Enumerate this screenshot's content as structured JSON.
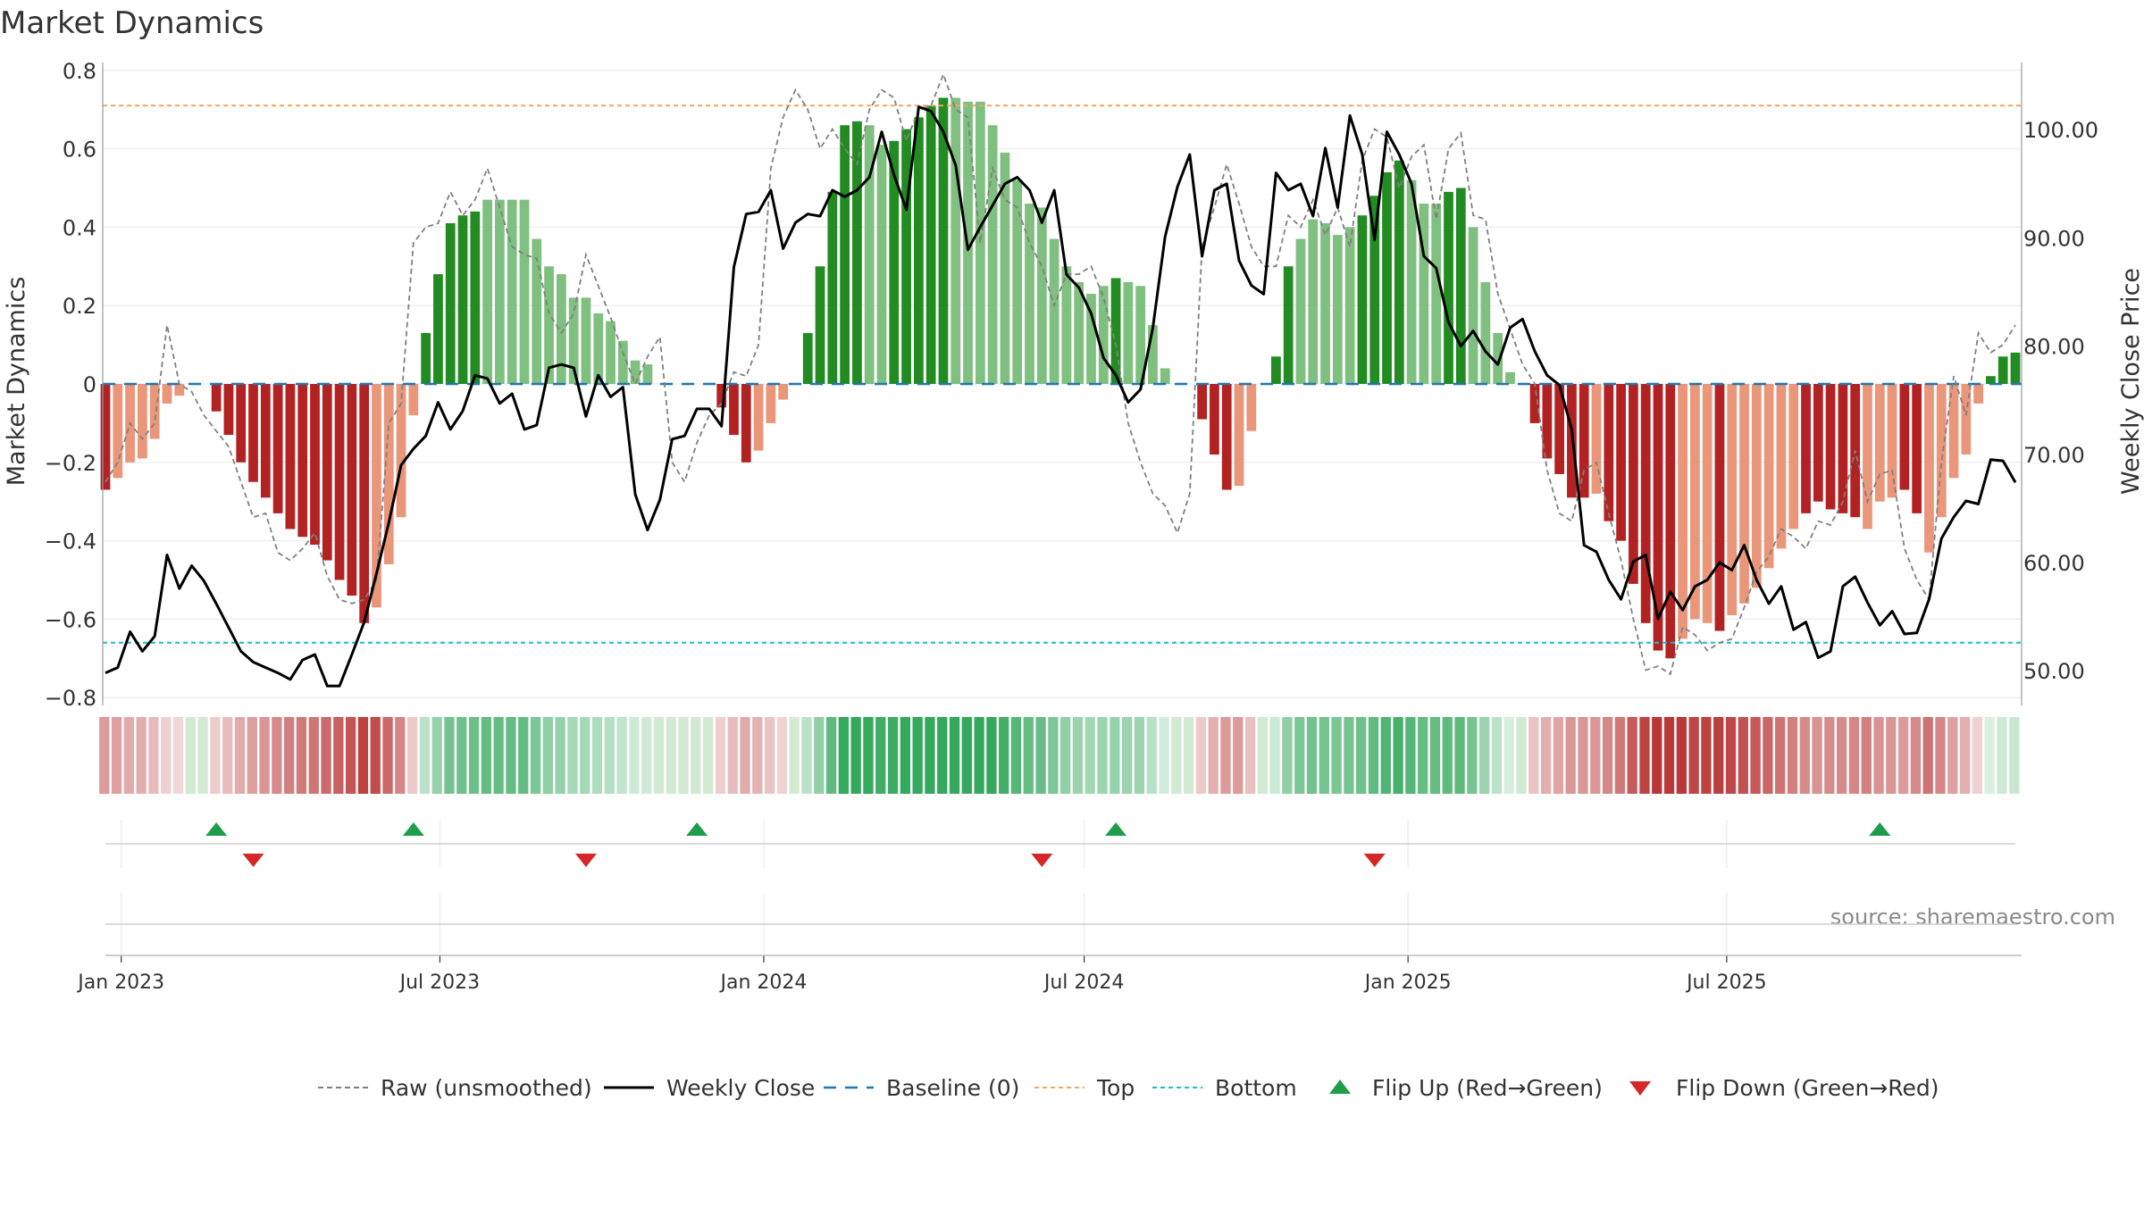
{
  "chart_data": {
    "type": "bar",
    "title": "Market Dynamics",
    "ylabel_left": "Market Dynamics",
    "ylabel_right": "Weekly Close Price",
    "source": "source: sharemaestro.com",
    "y_left_ticks": [
      "0.8",
      "0.6",
      "0.4",
      "0.2",
      "0",
      "−0.2",
      "−0.4",
      "−0.6",
      "−0.8"
    ],
    "y_left_tick_values": [
      0.8,
      0.6,
      0.4,
      0.2,
      0,
      -0.2,
      -0.4,
      -0.6,
      -0.8
    ],
    "y_right_ticks": [
      "100.00",
      "90.00",
      "80.00",
      "70.00",
      "60.00",
      "50.00"
    ],
    "y_right_tick_values": [
      100,
      90,
      80,
      70,
      60,
      50
    ],
    "ylim_left": [
      -0.82,
      0.82
    ],
    "ylim_right": [
      46.8,
      106.2
    ],
    "x_ticks": [
      "Jan 2023",
      "Jul 2023",
      "Jan 2024",
      "Jul 2024",
      "Jan 2025",
      "Jul 2025"
    ],
    "x_tick_dates": [
      "2023-01-01",
      "2023-07-01",
      "2024-01-01",
      "2024-07-01",
      "2025-01-01",
      "2025-07-01"
    ],
    "x_start": "2022-12-23",
    "week_step_days": 7,
    "top_level": 0.71,
    "bottom_level": -0.66,
    "grid": true,
    "legend_position": "bottom",
    "colors": {
      "strong_green": "#228b22",
      "weak_green": "#7fbf7f",
      "strong_red": "#b22222",
      "weak_red": "#e9967a",
      "top_line": "#f4a460",
      "bottom_line": "#17becf",
      "baseline": "#1f77b4",
      "flip_up": "#1e9e4a",
      "flip_down": "#d62728",
      "close_line": "#000000",
      "raw_line": "#808080"
    },
    "momentum": [
      -0.27,
      -0.24,
      -0.2,
      -0.19,
      -0.14,
      -0.05,
      -0.03,
      0.0,
      0.0,
      -0.07,
      -0.13,
      -0.2,
      -0.25,
      -0.29,
      -0.33,
      -0.37,
      -0.39,
      -0.41,
      -0.45,
      -0.5,
      -0.54,
      -0.61,
      -0.57,
      -0.46,
      -0.34,
      -0.08,
      0.13,
      0.28,
      0.41,
      0.43,
      0.44,
      0.47,
      0.47,
      0.47,
      0.47,
      0.37,
      0.3,
      0.28,
      0.22,
      0.22,
      0.18,
      0.16,
      0.11,
      0.06,
      0.05,
      0.0,
      0.0,
      0.0,
      0.0,
      0.0,
      -0.06,
      -0.13,
      -0.2,
      -0.17,
      -0.1,
      -0.04,
      0.0,
      0.13,
      0.3,
      0.49,
      0.66,
      0.67,
      0.66,
      0.61,
      0.62,
      0.65,
      0.68,
      0.71,
      0.73,
      0.73,
      0.72,
      0.72,
      0.66,
      0.59,
      0.52,
      0.46,
      0.45,
      0.37,
      0.3,
      0.26,
      0.23,
      0.25,
      0.27,
      0.26,
      0.25,
      0.15,
      0.04,
      0.0,
      0.0,
      -0.09,
      -0.18,
      -0.27,
      -0.26,
      -0.12,
      0.0,
      0.07,
      0.3,
      0.37,
      0.42,
      0.41,
      0.38,
      0.4,
      0.43,
      0.48,
      0.54,
      0.57,
      0.52,
      0.46,
      0.46,
      0.49,
      0.5,
      0.4,
      0.26,
      0.13,
      0.03,
      0.0,
      -0.1,
      -0.19,
      -0.23,
      -0.29,
      -0.29,
      -0.28,
      -0.35,
      -0.4,
      -0.51,
      -0.61,
      -0.68,
      -0.7,
      -0.65,
      -0.6,
      -0.61,
      -0.63,
      -0.59,
      -0.56,
      -0.52,
      -0.47,
      -0.42,
      -0.37,
      -0.33,
      -0.3,
      -0.32,
      -0.33,
      -0.34,
      -0.37,
      -0.3,
      -0.29,
      -0.27,
      -0.33,
      -0.43,
      -0.34,
      -0.24,
      -0.18,
      -0.05,
      0.02,
      0.07,
      0.08
    ],
    "momentum_strength": [
      "s",
      "w",
      "w",
      "w",
      "w",
      "w",
      "w",
      "w",
      "w",
      "s",
      "s",
      "s",
      "s",
      "s",
      "s",
      "s",
      "s",
      "s",
      "s",
      "s",
      "s",
      "s",
      "w",
      "w",
      "w",
      "w",
      "s",
      "s",
      "s",
      "s",
      "s",
      "w",
      "w",
      "w",
      "w",
      "w",
      "w",
      "w",
      "w",
      "w",
      "w",
      "w",
      "w",
      "w",
      "w",
      "w",
      "w",
      "w",
      "w",
      "w",
      "s",
      "s",
      "s",
      "w",
      "w",
      "w",
      "w",
      "s",
      "s",
      "s",
      "s",
      "s",
      "w",
      "w",
      "s",
      "s",
      "s",
      "s",
      "s",
      "w",
      "w",
      "w",
      "w",
      "w",
      "w",
      "w",
      "w",
      "w",
      "w",
      "w",
      "w",
      "w",
      "s",
      "w",
      "w",
      "w",
      "w",
      "w",
      "w",
      "s",
      "s",
      "s",
      "w",
      "w",
      "w",
      "s",
      "s",
      "w",
      "w",
      "w",
      "w",
      "w",
      "s",
      "s",
      "s",
      "s",
      "w",
      "w",
      "w",
      "s",
      "s",
      "w",
      "w",
      "w",
      "w",
      "w",
      "s",
      "s",
      "s",
      "s",
      "s",
      "w",
      "s",
      "s",
      "s",
      "s",
      "s",
      "s",
      "w",
      "w",
      "w",
      "s",
      "w",
      "w",
      "w",
      "w",
      "w",
      "w",
      "s",
      "s",
      "s",
      "s",
      "s",
      "w",
      "w",
      "w",
      "s",
      "s",
      "w",
      "w",
      "w",
      "w",
      "w",
      "s",
      "s",
      "s"
    ],
    "close": [
      49.8,
      50.3,
      53.6,
      51.8,
      53.2,
      60.7,
      57.6,
      59.7,
      58.3,
      56.2,
      54.0,
      51.8,
      50.8,
      50.3,
      49.8,
      49.2,
      51.0,
      51.5,
      48.6,
      48.6,
      51.5,
      54.5,
      59.0,
      63.7,
      69.0,
      70.5,
      71.7,
      74.8,
      72.3,
      74.0,
      77.3,
      77.0,
      74.7,
      75.6,
      72.3,
      72.7,
      78.0,
      78.3,
      78.0,
      73.5,
      77.3,
      75.3,
      76.2,
      66.3,
      63.0,
      65.8,
      71.4,
      71.7,
      74.2,
      74.2,
      72.6,
      87.3,
      92.2,
      92.4,
      94.4,
      89.0,
      91.4,
      92.2,
      92.0,
      94.4,
      93.8,
      94.4,
      95.6,
      99.8,
      95.8,
      92.6,
      102.1,
      101.7,
      99.8,
      96.7,
      88.9,
      91.0,
      93.0,
      95.0,
      95.6,
      94.4,
      91.4,
      94.4,
      86.6,
      85.4,
      83.0,
      78.9,
      77.3,
      74.8,
      76.0,
      81.7,
      90.1,
      94.7,
      97.7,
      88.3,
      94.4,
      95.0,
      87.9,
      85.6,
      84.8,
      96.0,
      94.4,
      95.0,
      92.0,
      98.3,
      92.8,
      101.3,
      97.7,
      89.8,
      99.8,
      97.7,
      95.0,
      88.3,
      87.2,
      82.2,
      80.0,
      81.4,
      79.5,
      78.3,
      81.7,
      82.5,
      79.5,
      77.3,
      76.4,
      72.3,
      61.6,
      61.0,
      58.4,
      56.6,
      60.1,
      60.7,
      54.8,
      57.3,
      55.6,
      57.8,
      58.4,
      60.0,
      59.3,
      61.6,
      58.4,
      56.2,
      57.8,
      53.8,
      54.5,
      51.2,
      51.8,
      57.8,
      58.7,
      56.3,
      54.2,
      55.5,
      53.4,
      53.5,
      56.6,
      62.2,
      64.2,
      65.7,
      65.4,
      69.5,
      69.4,
      67.4
    ],
    "raw": [
      -0.25,
      -0.2,
      -0.1,
      -0.14,
      -0.1,
      0.15,
      0.0,
      -0.02,
      -0.08,
      -0.12,
      -0.16,
      -0.25,
      -0.34,
      -0.33,
      -0.43,
      -0.45,
      -0.42,
      -0.38,
      -0.49,
      -0.55,
      -0.56,
      -0.55,
      -0.5,
      -0.1,
      -0.05,
      0.36,
      0.4,
      0.41,
      0.49,
      0.43,
      0.47,
      0.55,
      0.45,
      0.35,
      0.33,
      0.32,
      0.18,
      0.13,
      0.18,
      0.33,
      0.25,
      0.17,
      0.08,
      0.0,
      0.07,
      0.12,
      -0.2,
      -0.25,
      -0.15,
      -0.08,
      -0.05,
      0.03,
      0.02,
      0.1,
      0.55,
      0.68,
      0.75,
      0.7,
      0.6,
      0.65,
      0.6,
      0.56,
      0.7,
      0.75,
      0.73,
      0.62,
      0.7,
      0.71,
      0.79,
      0.7,
      0.68,
      0.36,
      0.55,
      0.47,
      0.45,
      0.36,
      0.3,
      0.2,
      0.28,
      0.28,
      0.3,
      0.22,
      0.1,
      -0.1,
      -0.2,
      -0.28,
      -0.31,
      -0.38,
      -0.28,
      0.35,
      0.45,
      0.56,
      0.46,
      0.35,
      0.3,
      0.3,
      0.43,
      0.4,
      0.47,
      0.38,
      0.45,
      0.35,
      0.57,
      0.65,
      0.63,
      0.5,
      0.58,
      0.61,
      0.42,
      0.6,
      0.64,
      0.43,
      0.42,
      0.23,
      0.14,
      0.05,
      0.0,
      -0.22,
      -0.33,
      -0.35,
      -0.22,
      -0.2,
      -0.33,
      -0.45,
      -0.6,
      -0.73,
      -0.72,
      -0.74,
      -0.62,
      -0.64,
      -0.68,
      -0.66,
      -0.65,
      -0.57,
      -0.48,
      -0.44,
      -0.37,
      -0.39,
      -0.42,
      -0.35,
      -0.36,
      -0.3,
      -0.17,
      -0.3,
      -0.23,
      -0.22,
      -0.42,
      -0.5,
      -0.55,
      -0.2,
      0.02,
      -0.08,
      0.13,
      0.08,
      0.1,
      0.15
    ],
    "flips_up": [
      "2023-02-24",
      "2023-06-16",
      "2023-11-24",
      "2024-07-19",
      "2025-09-26"
    ],
    "flips_down": [
      "2023-03-17",
      "2023-09-22",
      "2024-06-07",
      "2024-12-13"
    ],
    "legend": [
      {
        "label": "Raw (unsmoothed)",
        "style": "dashed-gray"
      },
      {
        "label": "Weekly Close",
        "style": "solid-black"
      },
      {
        "label": "Baseline (0)",
        "style": "dashed-blue"
      },
      {
        "label": "Top",
        "style": "dotted-orange"
      },
      {
        "label": "Bottom",
        "style": "dotted-cyan"
      },
      {
        "label": "Flip Up (Red→Green)",
        "style": "triangle-up-green"
      },
      {
        "label": "Flip Down (Green→Red)",
        "style": "triangle-down-red"
      }
    ]
  }
}
